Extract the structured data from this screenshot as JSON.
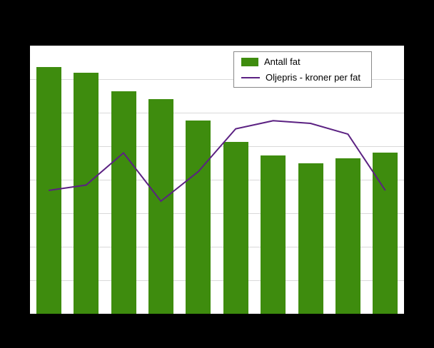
{
  "page": {
    "background_color": "#000000",
    "plot_background_color": "#ffffff",
    "gridline_color": "#d9d9d9"
  },
  "legend": {
    "items": [
      {
        "label": "Antall fat",
        "swatch": "bar-swatch",
        "color": "#3e8c0e"
      },
      {
        "label": "Oljepris - kroner per fat",
        "swatch": "line-swatch",
        "color": "#5b2182"
      }
    ],
    "position": "top-right-inside",
    "border_color": "#888888"
  },
  "chart_data": {
    "type": "bar",
    "categories": [
      "",
      "",
      "",
      "",
      "",
      "",
      "",
      "",
      "",
      ""
    ],
    "x_tick_labels_visible": false,
    "y_tick_labels_visible": false,
    "series": [
      {
        "name": "Antall fat",
        "type": "bar",
        "color": "#3e8c0e",
        "values": [
          92,
          90,
          83,
          80,
          72,
          64,
          59,
          56,
          58,
          60
        ]
      },
      {
        "name": "Oljepris - kroner per fat",
        "type": "line",
        "color": "#5b2182",
        "line_width": 2,
        "values": [
          46,
          48,
          60,
          42,
          53,
          69,
          72,
          71,
          67,
          46
        ]
      }
    ],
    "title": "",
    "xlabel": "",
    "ylabel": "",
    "ylim": [
      0,
      100
    ],
    "grid": true,
    "gridline_divisions": 8,
    "legend_position": "top-right-inside",
    "note": "values estimated as percent of plot height; axis tick labels not visible in screenshot"
  }
}
